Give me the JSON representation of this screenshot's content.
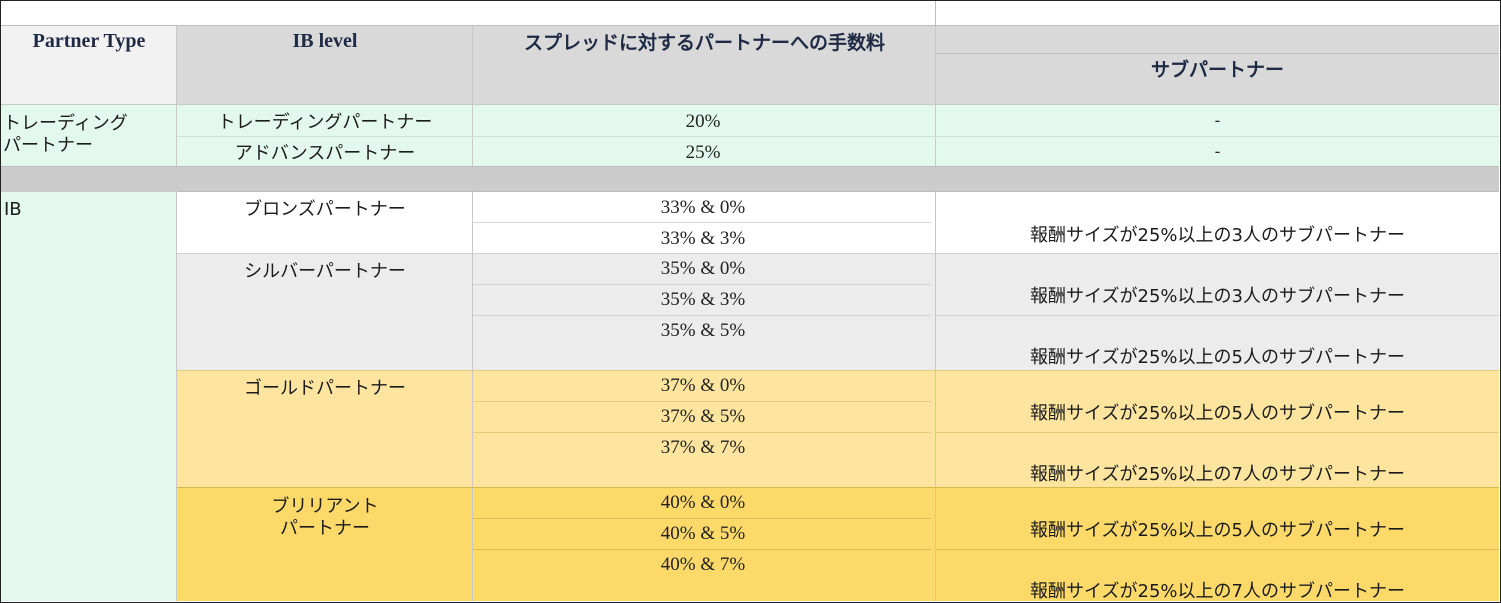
{
  "header": {
    "partner_type": "Partner Type",
    "ib_level": "IB level",
    "commission": "スプレッドに対するパートナーへの手数料",
    "sub_partner": "サブパートナー"
  },
  "trading": {
    "type_label_1": "トレーディング",
    "type_label_2": "パートナー",
    "rows": [
      {
        "level": "トレーディングパートナー",
        "commission": "20%",
        "sub": "-"
      },
      {
        "level": "アドバンスパートナー",
        "commission": "25%",
        "sub": "-"
      }
    ]
  },
  "ib": {
    "type_label": "IB",
    "bronze": {
      "level": "ブロンズパートナー",
      "commissions": [
        "33% & 0%",
        "33% & 3%"
      ],
      "subs": [
        "報酬サイズが25%以上の3人のサブパートナー"
      ]
    },
    "silver": {
      "level": "シルバーパートナー",
      "commissions": [
        "35% & 0%",
        "35% & 3%",
        "35% & 5%"
      ],
      "subs": [
        "報酬サイズが25%以上の3人のサブパートナー",
        "報酬サイズが25%以上の5人のサブパートナー"
      ]
    },
    "gold": {
      "level": "ゴールドパートナー",
      "commissions": [
        "37% & 0%",
        "37% & 5%",
        "37% & 7%"
      ],
      "subs": [
        "報酬サイズが25%以上の5人のサブパートナー",
        "報酬サイズが25%以上の7人のサブパートナー"
      ]
    },
    "brilliant": {
      "level_1": "ブリリアント",
      "level_2": "パートナー",
      "commissions": [
        "40% & 0%",
        "40% & 5%",
        "40% & 7%"
      ],
      "subs": [
        "報酬サイズが25%以上の5人のサブパートナー",
        "報酬サイズが25%以上の7人のサブパートナー"
      ]
    }
  },
  "colors": {
    "header_bg": "#d9d9d9",
    "header_first_bg": "#f2f2f2",
    "trading_bg": "#e3f9ee",
    "separator_bg": "#cccccc",
    "ib_bg": "#e3f9ee",
    "silver_bg": "#ececec",
    "gold_bg": "#fde59f",
    "brilliant_bg": "#fdd96a"
  }
}
